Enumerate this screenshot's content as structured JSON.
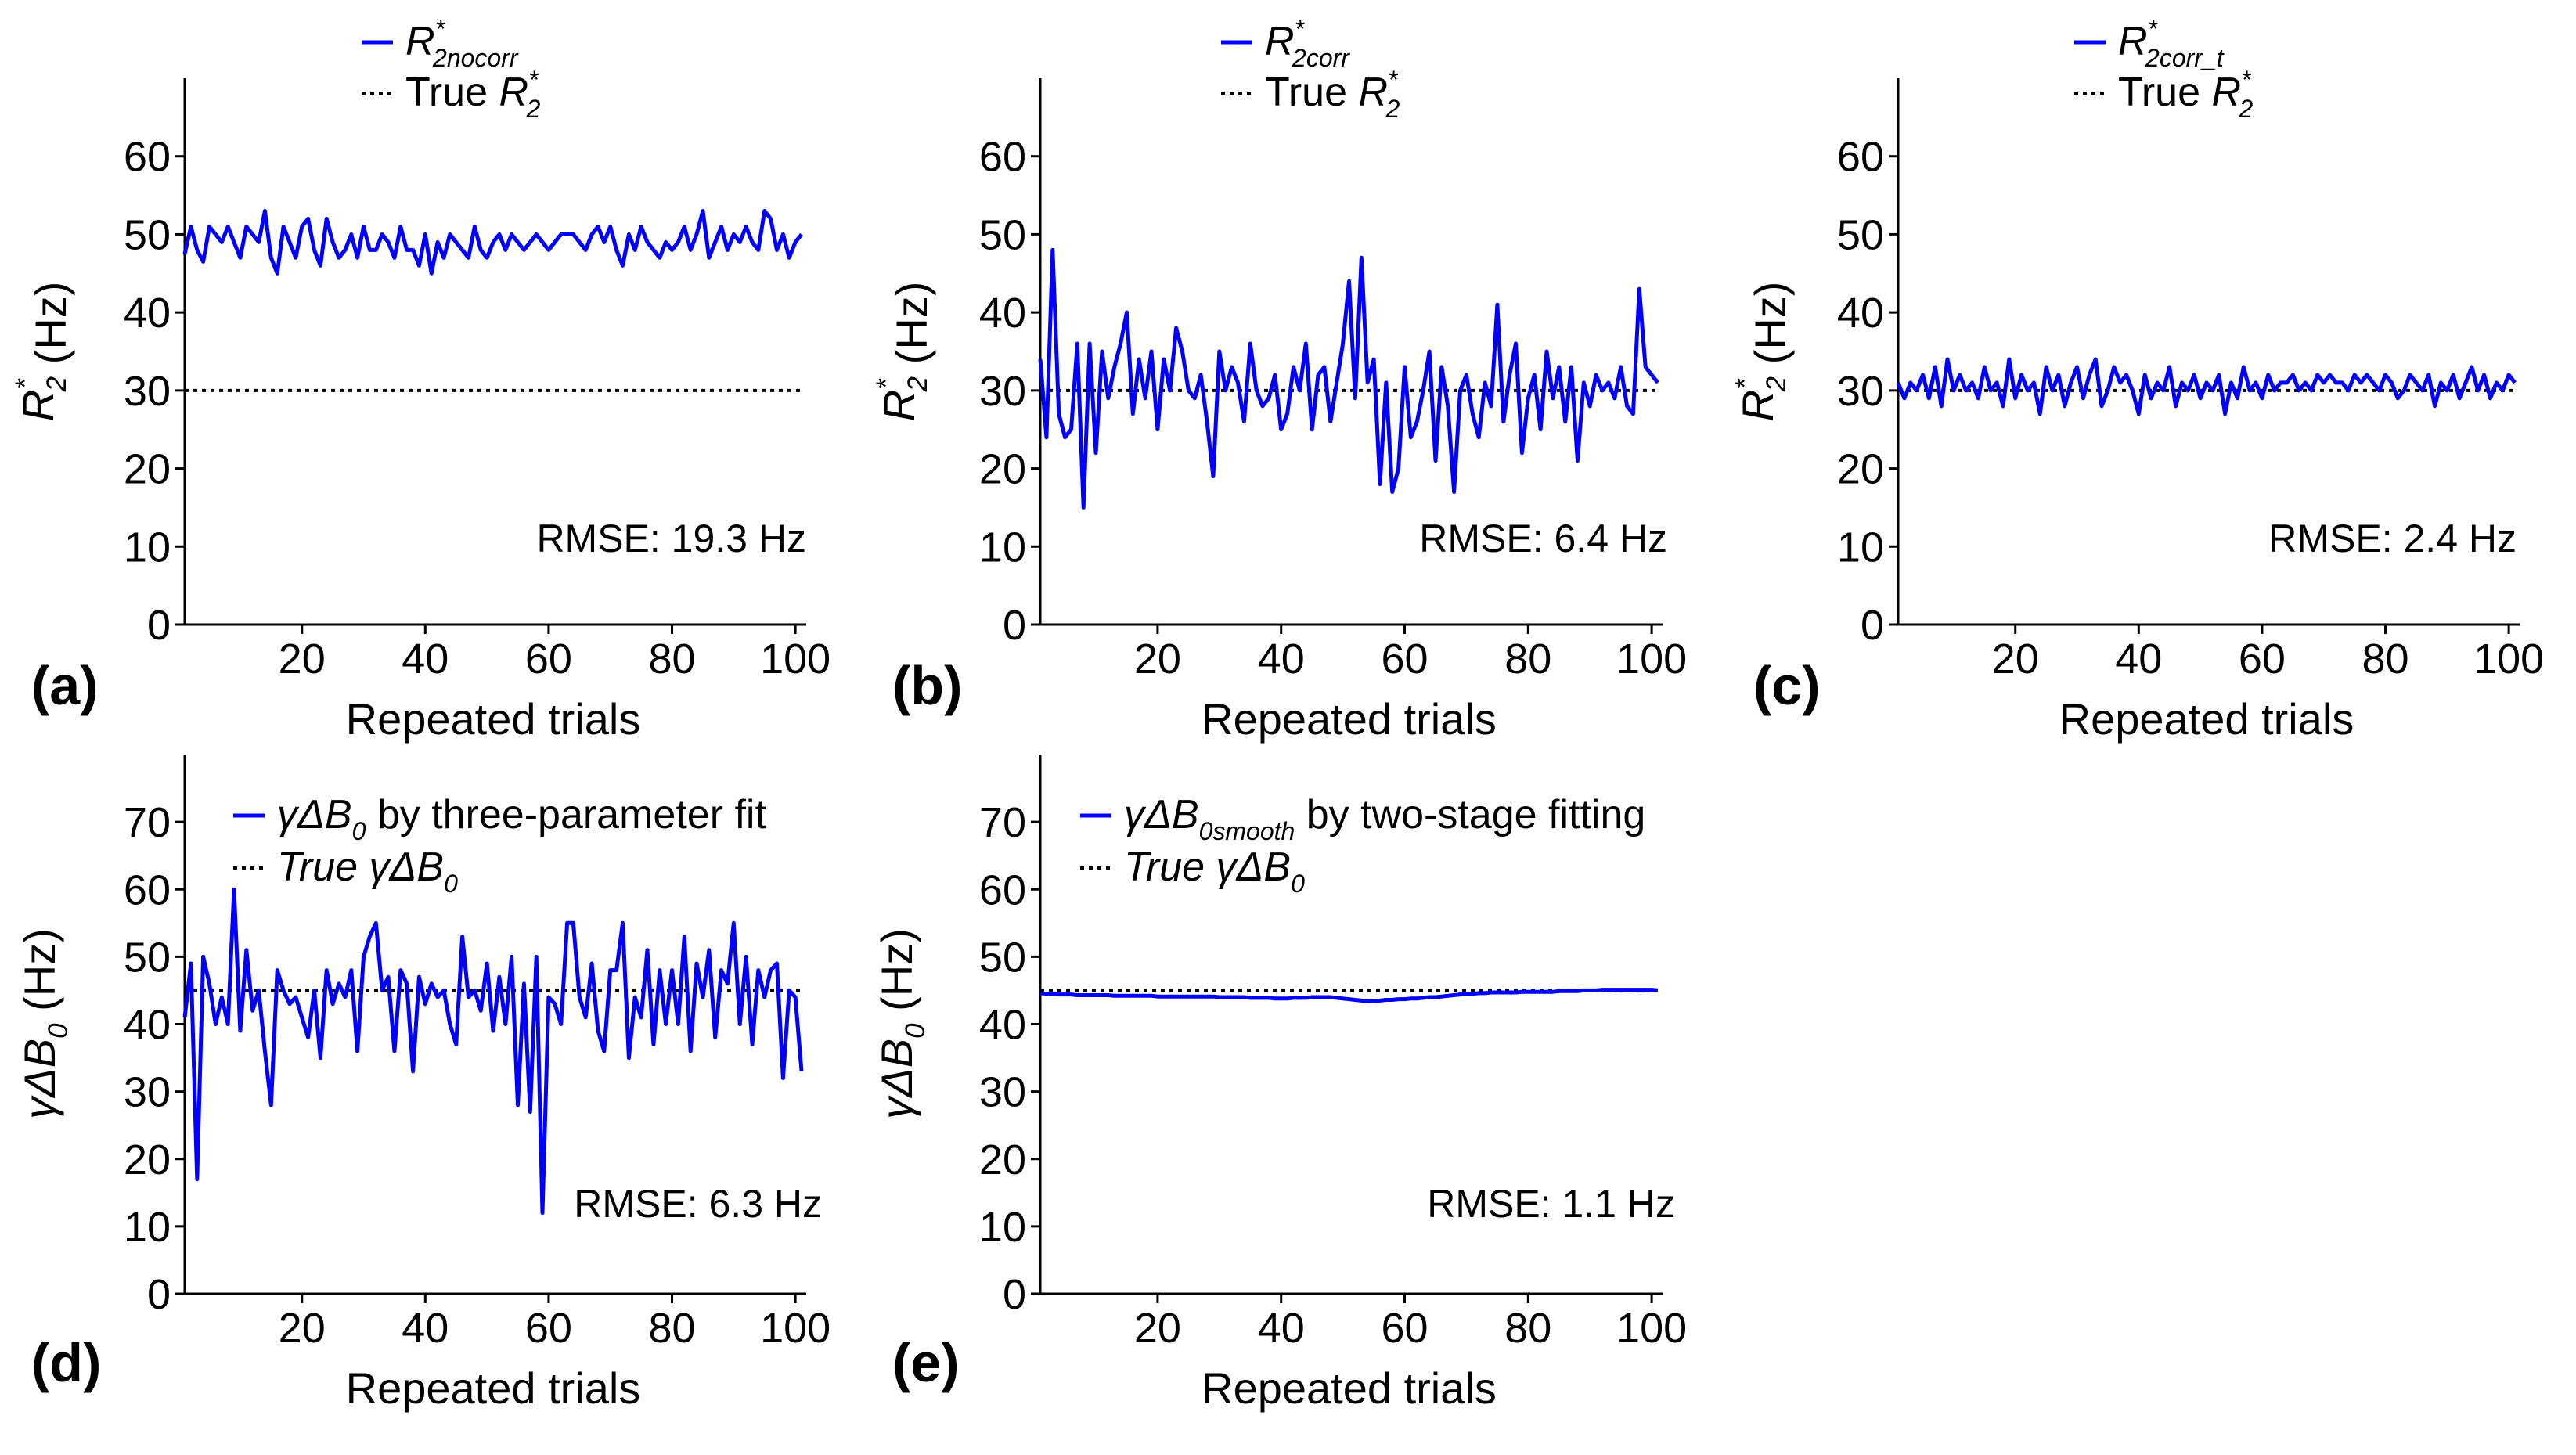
{
  "colors": {
    "series": "#0000FF",
    "reference": "#000000",
    "background": "#FFFFFF"
  },
  "chart_data": [
    {
      "panel": "(a)",
      "type": "line",
      "xlabel": "Repeated trials",
      "ylabel": {
        "main": "R",
        "sup": "*",
        "sub": "2",
        "unit": " (Hz)"
      },
      "xlim": [
        1,
        101
      ],
      "ylim": [
        0,
        70
      ],
      "xticks": [
        20,
        40,
        60,
        80,
        100
      ],
      "yticks": [
        0,
        10,
        20,
        30,
        40,
        50,
        60
      ],
      "grid": false,
      "legend": [
        {
          "kind": "series",
          "main": "R",
          "sup": "*",
          "sub": "2nocorr",
          "suffix": ""
        },
        {
          "kind": "reference",
          "prefix": "True ",
          "main": "R",
          "sup": "*",
          "sub": "2",
          "suffix": ""
        }
      ],
      "annotation": "RMSE: 19.3 Hz",
      "true_value": 30,
      "series": [
        {
          "name": "R2* nocorr",
          "values": [
            47.5,
            51,
            48,
            46.5,
            51,
            50,
            49,
            51,
            49,
            47,
            51,
            50,
            49,
            53,
            47,
            45,
            51,
            49,
            47,
            51,
            52,
            48,
            46,
            52,
            49,
            47,
            48,
            50,
            47,
            51,
            48,
            48,
            50,
            49,
            47,
            51,
            48,
            48,
            46,
            50,
            45,
            49,
            47,
            50,
            49,
            48,
            47,
            51,
            48,
            47,
            49,
            50,
            48,
            50,
            49,
            48,
            49,
            50,
            49,
            48,
            49,
            50,
            50,
            50,
            49,
            48,
            50,
            51,
            49,
            51,
            48,
            46,
            50,
            48,
            51,
            49,
            48,
            47,
            49,
            48,
            49,
            51,
            48,
            50,
            53,
            47,
            49,
            51,
            48,
            50,
            49,
            51,
            49,
            48,
            53,
            52,
            48,
            50,
            47,
            49,
            50
          ]
        }
      ]
    },
    {
      "panel": "(b)",
      "type": "line",
      "xlabel": "Repeated trials",
      "ylabel": {
        "main": "R",
        "sup": "*",
        "sub": "2",
        "unit": " (Hz)"
      },
      "xlim": [
        1,
        101
      ],
      "ylim": [
        0,
        70
      ],
      "xticks": [
        20,
        40,
        60,
        80,
        100
      ],
      "yticks": [
        0,
        10,
        20,
        30,
        40,
        50,
        60
      ],
      "grid": false,
      "legend": [
        {
          "kind": "series",
          "main": "R",
          "sup": "*",
          "sub": "2corr",
          "suffix": ""
        },
        {
          "kind": "reference",
          "prefix": "True ",
          "main": "R",
          "sup": "*",
          "sub": "2",
          "suffix": ""
        }
      ],
      "annotation": "RMSE: 6.4 Hz",
      "true_value": 30,
      "series": [
        {
          "name": "R2* corr",
          "values": [
            34,
            24,
            48,
            27,
            24,
            25,
            36,
            15,
            36,
            22,
            35,
            29,
            33,
            36,
            40,
            27,
            34,
            29,
            35,
            25,
            34,
            30,
            38,
            35,
            30,
            29,
            32,
            26,
            19,
            35,
            30,
            33,
            31,
            26,
            36,
            30,
            28,
            29,
            32,
            25,
            27,
            33,
            30,
            36,
            25,
            32,
            33,
            26,
            31,
            36,
            44,
            29,
            47,
            31,
            34,
            18,
            31,
            17,
            20,
            33,
            24,
            26,
            30,
            35,
            21,
            33,
            28,
            17,
            30,
            32,
            27,
            24,
            31,
            28,
            41,
            26,
            32,
            36,
            22,
            29,
            32,
            25,
            35,
            29,
            33,
            26,
            33,
            21,
            31,
            28,
            32,
            30,
            31,
            29,
            33,
            28,
            27,
            43,
            33,
            32,
            31
          ]
        }
      ]
    },
    {
      "panel": "(c)",
      "type": "line",
      "xlabel": "Repeated trials",
      "ylabel": {
        "main": "R",
        "sup": "*",
        "sub": "2",
        "unit": " (Hz)"
      },
      "xlim": [
        1,
        101
      ],
      "ylim": [
        0,
        70
      ],
      "xticks": [
        20,
        40,
        60,
        80,
        100
      ],
      "yticks": [
        0,
        10,
        20,
        30,
        40,
        50,
        60
      ],
      "grid": false,
      "legend": [
        {
          "kind": "series",
          "main": "R",
          "sup": "*",
          "sub": "2corr_t",
          "suffix": ""
        },
        {
          "kind": "reference",
          "prefix": "True ",
          "main": "R",
          "sup": "*",
          "sub": "2",
          "suffix": ""
        }
      ],
      "annotation": "RMSE: 2.4 Hz",
      "true_value": 30,
      "series": [
        {
          "name": "R2* corr_t",
          "values": [
            31,
            29,
            31,
            30,
            32,
            29,
            33,
            28,
            34,
            30,
            32,
            30,
            31,
            29,
            33,
            30,
            31,
            28,
            34,
            29,
            32,
            30,
            31,
            27,
            33,
            30,
            32,
            28,
            31,
            33,
            29,
            32,
            34,
            28,
            30,
            33,
            31,
            32,
            30,
            27,
            32,
            29,
            31,
            30,
            33,
            28,
            31,
            30,
            32,
            29,
            31,
            30,
            32,
            27,
            31,
            29,
            33,
            30,
            31,
            29,
            32,
            30,
            31,
            31,
            32,
            30,
            31,
            30,
            32,
            31,
            32,
            31,
            31,
            30,
            32,
            31,
            32,
            31,
            30,
            32,
            31,
            29,
            30,
            32,
            31,
            30,
            32,
            28,
            31,
            30,
            32,
            29,
            31,
            33,
            30,
            32,
            29,
            31,
            30,
            32,
            31
          ]
        }
      ]
    },
    {
      "panel": "(d)",
      "type": "line",
      "xlabel": "Repeated trials",
      "ylabel": {
        "prefix": "γΔ",
        "main": "B",
        "sub": "0",
        "unit": " (Hz)"
      },
      "xlim": [
        1,
        101
      ],
      "ylim": [
        0,
        80
      ],
      "xticks": [
        20,
        40,
        60,
        80,
        100
      ],
      "yticks": [
        0,
        10,
        20,
        30,
        40,
        50,
        60,
        70
      ],
      "grid": false,
      "legend": [
        {
          "kind": "series",
          "prefix": "γΔ",
          "main": "B",
          "sub": "0",
          "suffix": " by three-parameter fit"
        },
        {
          "kind": "reference",
          "prefix": "True γΔ",
          "main": "B",
          "sub": "0",
          "suffix": ""
        }
      ],
      "annotation": "RMSE: 6.3 Hz",
      "true_value": 45,
      "series": [
        {
          "name": "γΔB0 three-parameter fit",
          "values": [
            41,
            49,
            17,
            50,
            46,
            40,
            44,
            40,
            60,
            39,
            51,
            42,
            45,
            36,
            28,
            48,
            45,
            43,
            44,
            41,
            38,
            45,
            35,
            48,
            43,
            46,
            44,
            48,
            36,
            50,
            53,
            55,
            45,
            47,
            36,
            48,
            46,
            33,
            47,
            43,
            46,
            44,
            45,
            40,
            37,
            53,
            44,
            45,
            42,
            49,
            39,
            47,
            40,
            50,
            28,
            46,
            27,
            50,
            12,
            44,
            43,
            40,
            55,
            55,
            44,
            41,
            49,
            39,
            36,
            48,
            48,
            55,
            35,
            44,
            41,
            51,
            37,
            48,
            40,
            48,
            40,
            53,
            36,
            49,
            44,
            51,
            38,
            48,
            46,
            55,
            40,
            50,
            37,
            48,
            44,
            48,
            49,
            32,
            45,
            44,
            33
          ]
        }
      ]
    },
    {
      "panel": "(e)",
      "type": "line",
      "xlabel": "Repeated trials",
      "ylabel": {
        "prefix": "γΔ",
        "main": "B",
        "sub": "0",
        "unit": " (Hz)"
      },
      "xlim": [
        1,
        101
      ],
      "ylim": [
        0,
        80
      ],
      "xticks": [
        20,
        40,
        60,
        80,
        100
      ],
      "yticks": [
        0,
        10,
        20,
        30,
        40,
        50,
        60,
        70
      ],
      "grid": false,
      "legend": [
        {
          "kind": "series",
          "prefix": "γΔ",
          "main": "B",
          "sub": "0smooth",
          "suffix": " by two-stage fitting"
        },
        {
          "kind": "reference",
          "prefix": "True γΔ",
          "main": "B",
          "sub": "0",
          "suffix": ""
        }
      ],
      "annotation": "RMSE: 1.1 Hz",
      "true_value": 45,
      "series": [
        {
          "name": "γΔB0smooth two-stage fitting",
          "values": [
            44.6,
            44.5,
            44.5,
            44.4,
            44.4,
            44.4,
            44.3,
            44.3,
            44.3,
            44.3,
            44.3,
            44.3,
            44.2,
            44.2,
            44.2,
            44.2,
            44.2,
            44.2,
            44.2,
            44.1,
            44.1,
            44.1,
            44.1,
            44.1,
            44.1,
            44.1,
            44.1,
            44.1,
            44.1,
            44.0,
            44.0,
            44.0,
            44.0,
            44.0,
            43.9,
            43.9,
            43.9,
            43.9,
            43.8,
            43.8,
            43.8,
            43.9,
            43.9,
            43.9,
            44.0,
            44.0,
            44.0,
            44.0,
            43.9,
            43.8,
            43.7,
            43.6,
            43.5,
            43.4,
            43.4,
            43.5,
            43.6,
            43.6,
            43.7,
            43.7,
            43.8,
            43.8,
            43.9,
            44.0,
            44.0,
            44.1,
            44.2,
            44.3,
            44.4,
            44.5,
            44.5,
            44.6,
            44.6,
            44.7,
            44.7,
            44.7,
            44.7,
            44.7,
            44.8,
            44.8,
            44.8,
            44.8,
            44.8,
            44.8,
            44.9,
            44.9,
            44.9,
            44.9,
            45.0,
            45.0,
            45.0,
            45.1,
            45.1,
            45.1,
            45.1,
            45.1,
            45.1,
            45.1,
            45.1,
            45.1,
            45.0
          ]
        }
      ]
    }
  ]
}
